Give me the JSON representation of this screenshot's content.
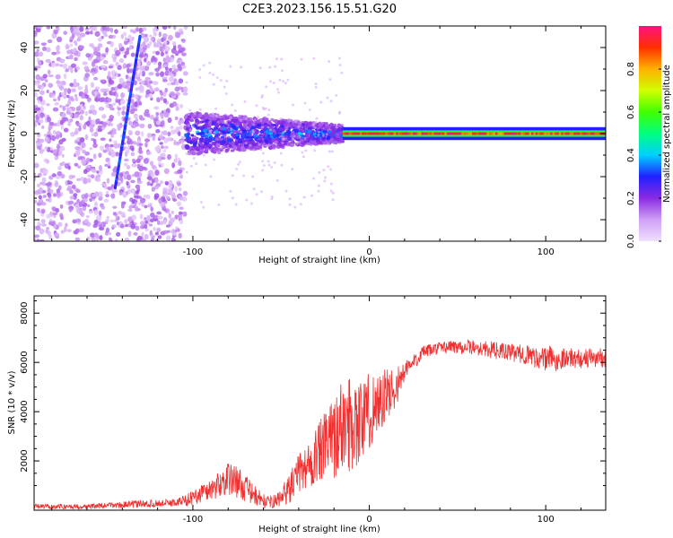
{
  "title": "C2E3.2023.156.15.51.G20",
  "colorbar": {
    "label": "Normalized spectral amplitude",
    "ticks": [
      "0.0",
      "0.2",
      "0.4",
      "0.6",
      "0.8"
    ],
    "tick_values": [
      0.0,
      0.2,
      0.4,
      0.6,
      0.8
    ],
    "range": [
      0,
      1
    ],
    "colormap": [
      "#f0e0ff",
      "#cfa0f5",
      "#8a2be2",
      "#2020ff",
      "#00d0ff",
      "#00ff80",
      "#40ff00",
      "#d0ff00",
      "#ffb000",
      "#ff3000",
      "#ff1080"
    ]
  },
  "chart_data": [
    {
      "type": "heatmap",
      "xlabel": "Height of straight line (km)",
      "ylabel": "Frequency (Hz)",
      "xlim": [
        -190,
        134
      ],
      "ylim": [
        -50,
        50
      ],
      "xticks": [
        -100,
        0,
        100
      ],
      "yticks": [
        -40,
        -20,
        0,
        20,
        40
      ],
      "xtick_labels": [
        "-100",
        "0",
        "100"
      ],
      "ytick_labels": [
        "-40",
        "-20",
        "0",
        "20",
        "40"
      ],
      "regions": [
        {
          "description": "noise",
          "x_range": [
            -190,
            -104
          ],
          "freq_range": [
            -50,
            50
          ],
          "amplitude": 0.1
        },
        {
          "description": "streak",
          "x_range": [
            -144,
            -130
          ],
          "freq_range": [
            -25,
            45
          ],
          "amplitude": 0.25
        },
        {
          "description": "spread",
          "x_range": [
            -104,
            -15
          ],
          "freq_range": [
            -10,
            10
          ],
          "amplitude": 0.3
        },
        {
          "description": "signal",
          "x_range": [
            -15,
            134
          ],
          "freq_range": [
            -1.5,
            1.5
          ],
          "amplitude": 0.95
        }
      ]
    },
    {
      "type": "line",
      "xlabel": "Height of straight line (km)",
      "ylabel": "SNR (10 * v/v)",
      "xlim": [
        -190,
        134
      ],
      "ylim": [
        0,
        8700
      ],
      "xticks": [
        -100,
        0,
        100
      ],
      "yticks": [
        2000,
        4000,
        6000,
        8000
      ],
      "xtick_labels": [
        "-100",
        "0",
        "100"
      ],
      "ytick_labels": [
        "2000",
        "4000",
        "6000",
        "8000"
      ],
      "color": "#ee3030",
      "series": [
        {
          "x": [
            -190,
            -160,
            -130,
            -110,
            -100,
            -95,
            -88,
            -82,
            -78,
            -72,
            -65,
            -58,
            -52,
            -45,
            -40,
            -35,
            -30,
            -25,
            -20,
            -15,
            -12,
            -8,
            -5,
            0,
            5,
            10,
            15,
            20,
            25,
            30,
            40,
            50,
            60,
            70,
            80,
            90,
            95,
            100,
            103,
            105,
            110,
            120,
            134
          ],
          "y": [
            150,
            150,
            250,
            300,
            500,
            700,
            900,
            1200,
            1300,
            1000,
            600,
            300,
            400,
            900,
            1500,
            1800,
            2200,
            2600,
            3000,
            3400,
            3500,
            3700,
            3600,
            4000,
            4400,
            4600,
            5000,
            5600,
            6000,
            6400,
            6600,
            6650,
            6600,
            6500,
            6400,
            6300,
            6200,
            6100,
            6300,
            6000,
            6200,
            6150,
            6200
          ],
          "spread": [
            100,
            100,
            150,
            150,
            300,
            400,
            500,
            600,
            700,
            600,
            400,
            250,
            300,
            600,
            800,
            1000,
            1200,
            1400,
            1700,
            1900,
            2000,
            1900,
            1800,
            1600,
            1400,
            1200,
            800,
            500,
            350,
            250,
            250,
            300,
            300,
            350,
            350,
            400,
            450,
            500,
            450,
            450,
            400,
            400,
            400
          ]
        }
      ]
    }
  ]
}
